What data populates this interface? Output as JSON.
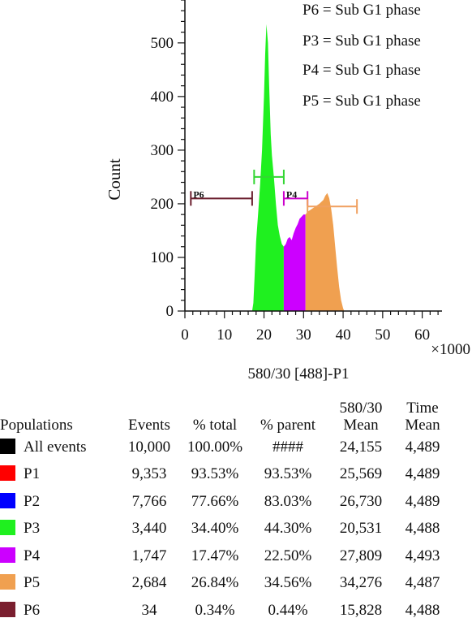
{
  "chart_data": {
    "type": "area",
    "xlabel": "580/30 [488]-P1",
    "ylabel": "Count",
    "x_multiplier_label": "×1000",
    "xlim": [
      0,
      65
    ],
    "ylim": [
      0,
      580
    ],
    "xticks": [
      0,
      10,
      20,
      30,
      40,
      50,
      60
    ],
    "yticks": [
      0,
      100,
      200,
      300,
      400,
      500
    ],
    "annotations": [
      "P6 = Sub G1 phase",
      "P3 = Sub G1 phase",
      "P4 = Sub G1 phase",
      "P5 = Sub G1 phase"
    ],
    "gates": [
      {
        "label": "P6",
        "x_start": 1.5,
        "x_end": 17,
        "y": 210,
        "color": "#6b1f2e"
      },
      {
        "label": "",
        "x_start": 17.5,
        "x_end": 25,
        "y": 250,
        "color": "#33d633"
      },
      {
        "label": "P4",
        "x_start": 25,
        "x_end": 31,
        "y": 210,
        "color": "#cc00cc"
      },
      {
        "label": "",
        "x_start": 31,
        "x_end": 43.5,
        "y": 195,
        "color": "#f0a060"
      }
    ],
    "series": [
      {
        "population": "P3",
        "color": "#1ff01f",
        "points": [
          [
            17,
            0
          ],
          [
            17.3,
            15
          ],
          [
            17.6,
            60
          ],
          [
            18,
            130
          ],
          [
            18.5,
            180
          ],
          [
            19,
            235
          ],
          [
            19.5,
            300
          ],
          [
            20,
            400
          ],
          [
            20.3,
            480
          ],
          [
            20.6,
            535
          ],
          [
            21,
            500
          ],
          [
            21.3,
            420
          ],
          [
            21.7,
            330
          ],
          [
            22,
            290
          ],
          [
            22.5,
            250
          ],
          [
            23,
            200
          ],
          [
            23.5,
            160
          ],
          [
            24,
            140
          ],
          [
            24.5,
            125
          ],
          [
            25,
            120
          ],
          [
            25,
            0
          ]
        ]
      },
      {
        "population": "P4",
        "color": "#cc00ff",
        "points": [
          [
            25,
            0
          ],
          [
            25,
            120
          ],
          [
            25.5,
            125
          ],
          [
            26,
            135
          ],
          [
            26.5,
            138
          ],
          [
            27,
            132
          ],
          [
            27.5,
            145
          ],
          [
            28,
            155
          ],
          [
            28.5,
            162
          ],
          [
            29,
            172
          ],
          [
            29.5,
            176
          ],
          [
            30,
            180
          ],
          [
            30.5,
            180
          ],
          [
            30.5,
            0
          ]
        ]
      },
      {
        "population": "P5",
        "color": "#f0a050",
        "points": [
          [
            30.5,
            0
          ],
          [
            30.5,
            180
          ],
          [
            31,
            185
          ],
          [
            32,
            190
          ],
          [
            33,
            195
          ],
          [
            34,
            200
          ],
          [
            35,
            207
          ],
          [
            35.5,
            215
          ],
          [
            36,
            220
          ],
          [
            36.5,
            210
          ],
          [
            37,
            190
          ],
          [
            37.5,
            160
          ],
          [
            38,
            120
          ],
          [
            38.5,
            80
          ],
          [
            39,
            45
          ],
          [
            39.5,
            20
          ],
          [
            40,
            5
          ],
          [
            40.3,
            0
          ]
        ]
      }
    ]
  },
  "table": {
    "headers": [
      {
        "top": "",
        "bottom": "Populations"
      },
      {
        "top": "",
        "bottom": "Events"
      },
      {
        "top": "",
        "bottom": "% total"
      },
      {
        "top": "",
        "bottom": "% parent"
      },
      {
        "top": "580/30",
        "bottom": "Mean"
      },
      {
        "top": "Time",
        "bottom": "Mean"
      }
    ],
    "rows": [
      {
        "color": "#000000",
        "name": "All events",
        "events": "10,000",
        "total": "100.00%",
        "parent": "####",
        "mean": "24,155",
        "time": "4,489"
      },
      {
        "color": "#ff0000",
        "name": "P1",
        "events": "9,353",
        "total": "93.53%",
        "parent": "93.53%",
        "mean": "25,569",
        "time": "4,489"
      },
      {
        "color": "#0000ff",
        "name": "P2",
        "events": "7,766",
        "total": "77.66%",
        "parent": "83.03%",
        "mean": "26,730",
        "time": "4,489"
      },
      {
        "color": "#1ff01f",
        "name": "P3",
        "events": "3,440",
        "total": "34.40%",
        "parent": "44.30%",
        "mean": "20,531",
        "time": "4,488"
      },
      {
        "color": "#cc00ff",
        "name": "P4",
        "events": "1,747",
        "total": "17.47%",
        "parent": "22.50%",
        "mean": "27,809",
        "time": "4,493"
      },
      {
        "color": "#f0a050",
        "name": "P5",
        "events": "2,684",
        "total": "26.84%",
        "parent": "34.56%",
        "mean": "34,276",
        "time": "4,487"
      },
      {
        "color": "#7a1f2f",
        "name": "P6",
        "events": "34",
        "total": "0.34%",
        "parent": "0.44%",
        "mean": "15,828",
        "time": "4,488"
      }
    ]
  }
}
